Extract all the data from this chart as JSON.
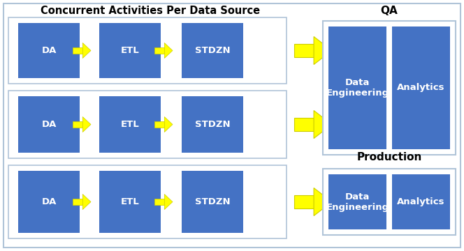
{
  "fig_width": 6.64,
  "fig_height": 3.6,
  "dpi": 100,
  "bg_color": "#ffffff",
  "outer_border_color": "#b0c4d8",
  "box_color": "#4472C4",
  "box_text_color": "#ffffff",
  "arrow_color": "#FFFF00",
  "arrow_edge_color": "#CCCC00",
  "title_left": "Concurrent Activities Per Data Source",
  "title_qa": "QA",
  "title_prod": "Production",
  "row_labels": [
    [
      "DA",
      "ETL",
      "STDZN"
    ],
    [
      "DA",
      "ETL",
      "STDZN"
    ],
    [
      "DA",
      "ETL",
      "STDZN"
    ]
  ],
  "qa_labels": [
    "Data\nEngineering",
    "Analytics"
  ],
  "prod_labels": [
    "Data\nEngineering",
    "Analytics"
  ]
}
